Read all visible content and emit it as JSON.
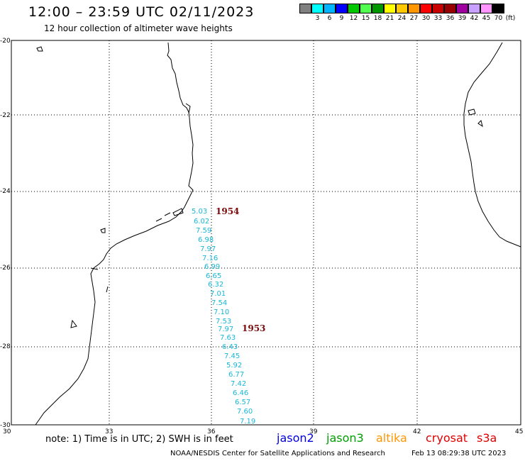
{
  "header": {
    "title": "12:00 – 23:59 UTC 02/11/2023",
    "subtitle": "12 hour collection of altimeter wave heights"
  },
  "legend": {
    "colors": [
      "#808080",
      "#00ffff",
      "#00b4ff",
      "#0000ff",
      "#00c800",
      "#50ff50",
      "#009600",
      "#ffff00",
      "#ffc800",
      "#ff9600",
      "#ff0000",
      "#c80000",
      "#960000",
      "#a000a0",
      "#c8a0ff",
      "#ff96ff",
      "#000000"
    ],
    "labels": [
      "",
      "3",
      "6",
      "9",
      "12",
      "15",
      "18",
      "21",
      "24",
      "27",
      "30",
      "33",
      "36",
      "39",
      "42",
      "45",
      "70",
      "(ft)"
    ]
  },
  "map": {
    "lat_labels": [
      "-20",
      "-22",
      "-24",
      "-26",
      "-28",
      "-30"
    ],
    "lon_labels": [
      "30",
      "33",
      "36",
      "39",
      "42",
      "45"
    ],
    "swh_values": [
      "5.03",
      "6.02",
      "7.59",
      "6.98",
      "7.97",
      "7.16",
      "6.99",
      "6.65",
      "6.32",
      "7.01",
      "7.54",
      "7.10",
      "7.53",
      "7.97",
      "7.63",
      "6.43",
      "7.45",
      "5.92",
      "6.77",
      "7.42",
      "6.46",
      "6.57",
      "7.60",
      "7.19"
    ],
    "pass_labels": [
      "1954",
      "1953"
    ],
    "swh_color": "#19b7d6",
    "pass_color": "#7a0a0a"
  },
  "footer": {
    "note": "note: 1) Time is in UTC; 2) SWH is in feet",
    "satellites": [
      {
        "name": "jason2",
        "color": "#0000e0"
      },
      {
        "name": "jason3",
        "color": "#00a000"
      },
      {
        "name": "altika",
        "color": "#ff9600"
      },
      {
        "name": "cryosat",
        "color": "#e00000"
      },
      {
        "name": "s3a",
        "color": "#e00000"
      }
    ],
    "credit": "NOAA/NESDIS Center for Satellite Applications and Research",
    "timestamp": "Feb 13 08:29:38 UTC 2023"
  }
}
